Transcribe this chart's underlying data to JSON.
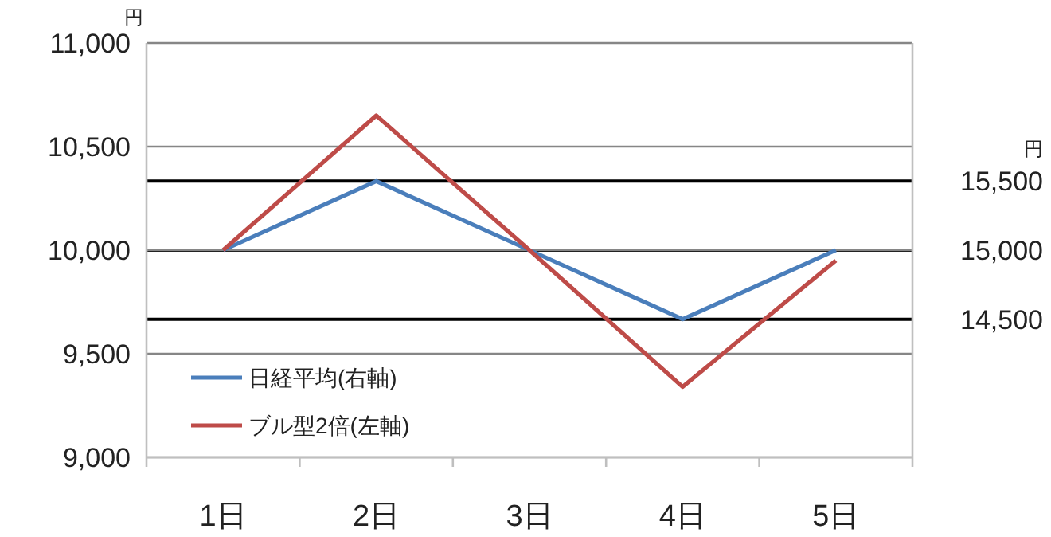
{
  "chart_data": {
    "type": "line",
    "categories": [
      "1日",
      "2日",
      "3日",
      "4日",
      "5日"
    ],
    "series": [
      {
        "name": "日経平均(右軸)",
        "color": "#4a7ebb",
        "values": [
          15000,
          15500,
          15000,
          14500,
          15000
        ],
        "axis": "y2"
      },
      {
        "name": "ブル型2倍(左軸)",
        "color": "#be4b48",
        "values": [
          10000,
          10650,
          10000,
          9340,
          9950
        ]
      }
    ],
    "ylabel": "円",
    "y2label": "円",
    "ylim": [
      9000,
      11000
    ],
    "yticks": [
      {
        "value": 9000,
        "label": "9,000"
      },
      {
        "value": 9500,
        "label": "9,500"
      },
      {
        "value": 10000,
        "label": "10,000"
      },
      {
        "value": 10500,
        "label": "10,500"
      },
      {
        "value": 11000,
        "label": "11,000"
      }
    ],
    "y2lim": [
      13500,
      16500
    ],
    "y2ticks": [
      {
        "value": 14500,
        "label": "14,500"
      },
      {
        "value": 15000,
        "label": "15,000"
      },
      {
        "value": 15500,
        "label": "15,500"
      }
    ],
    "grid": true,
    "legend": "bottom left",
    "marker": "none",
    "line_style": "solid"
  }
}
